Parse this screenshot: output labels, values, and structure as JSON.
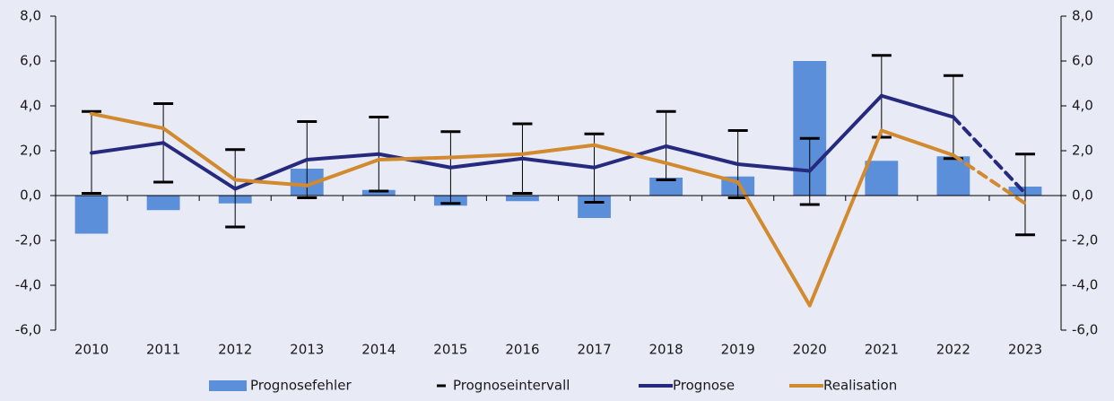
{
  "chart_data": {
    "type": "combo",
    "categories": [
      "2010",
      "2011",
      "2012",
      "2013",
      "2014",
      "2015",
      "2016",
      "2017",
      "2018",
      "2019",
      "2020",
      "2021",
      "2022",
      "2023"
    ],
    "series": [
      {
        "name": "Prognosefehler",
        "type": "bar",
        "color": "#5b8fd9",
        "values": [
          -1.7,
          -0.65,
          -0.35,
          1.2,
          0.25,
          -0.45,
          -0.25,
          -1.0,
          0.8,
          0.85,
          6.0,
          1.55,
          1.75,
          0.4
        ]
      },
      {
        "name": "Prognoseintervall",
        "type": "interval",
        "color": "#000000",
        "low": [
          0.1,
          0.6,
          -1.4,
          -0.1,
          0.2,
          -0.35,
          0.1,
          -0.3,
          0.7,
          -0.1,
          -0.4,
          2.6,
          1.65,
          -1.75
        ],
        "high": [
          3.75,
          4.1,
          2.05,
          3.3,
          3.5,
          2.85,
          3.2,
          2.75,
          3.75,
          2.9,
          2.55,
          6.25,
          5.35,
          1.85
        ]
      },
      {
        "name": "Prognose",
        "type": "line",
        "color": "#262a7e",
        "dash_last_segment": true,
        "values": [
          1.9,
          2.35,
          0.3,
          1.6,
          1.85,
          1.25,
          1.65,
          1.25,
          2.2,
          1.4,
          1.1,
          4.45,
          3.5,
          0.1
        ]
      },
      {
        "name": "Realisation",
        "type": "line",
        "color": "#d28a2e",
        "dash_last_segment": true,
        "values": [
          3.65,
          3.0,
          0.7,
          0.45,
          1.6,
          1.7,
          1.85,
          2.25,
          1.45,
          0.6,
          -4.9,
          2.9,
          1.8,
          -0.35
        ]
      }
    ],
    "ylim": [
      -6,
      8
    ],
    "yticks": [
      {
        "value": -6,
        "label": "-6,0"
      },
      {
        "value": -4,
        "label": "-4,0"
      },
      {
        "value": -2,
        "label": "-2,0"
      },
      {
        "value": 0,
        "label": "0,0"
      },
      {
        "value": 2,
        "label": "2,0"
      },
      {
        "value": 4,
        "label": "4,0"
      },
      {
        "value": 6,
        "label": "6,0"
      },
      {
        "value": 8,
        "label": "8,0"
      }
    ],
    "y2lim": [
      -6,
      8
    ],
    "y2ticks": [
      {
        "value": -6,
        "label": "-6,0"
      },
      {
        "value": -4,
        "label": "-4,0"
      },
      {
        "value": -2,
        "label": "-2,0"
      },
      {
        "value": 0,
        "label": "0,0"
      },
      {
        "value": 2,
        "label": "2,0"
      },
      {
        "value": 4,
        "label": "4,0"
      },
      {
        "value": 6,
        "label": "6,0"
      },
      {
        "value": 8,
        "label": "8,0"
      }
    ],
    "legend": "bottom"
  }
}
